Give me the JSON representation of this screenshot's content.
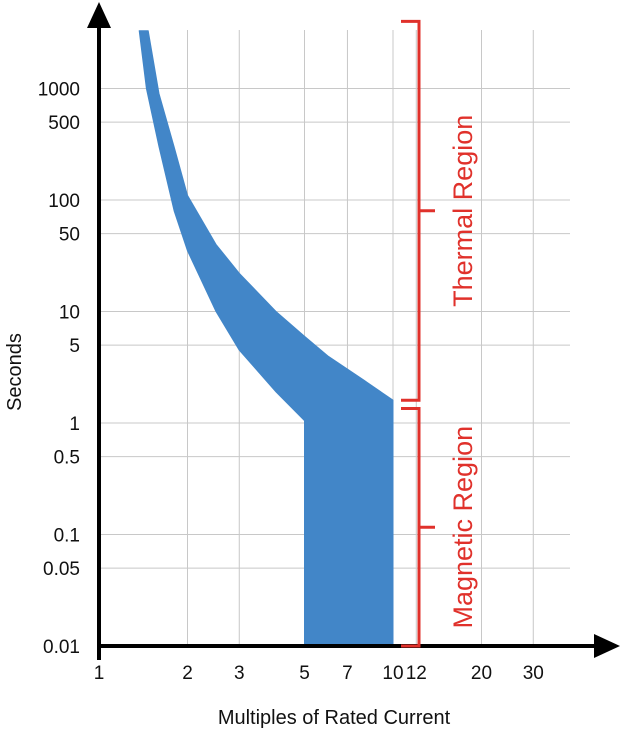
{
  "chart_data": {
    "type": "area",
    "title": "",
    "xlabel": "Multiples of Rated Current",
    "ylabel": "Seconds",
    "x_scale": "log",
    "y_scale": "log",
    "xlim": [
      1,
      45
    ],
    "ylim": [
      0.01,
      4000
    ],
    "grid": true,
    "x_ticks": [
      {
        "value": 1,
        "label": "1"
      },
      {
        "value": 2,
        "label": "2"
      },
      {
        "value": 3,
        "label": "3"
      },
      {
        "value": 5,
        "label": "5"
      },
      {
        "value": 7,
        "label": "7"
      },
      {
        "value": 10,
        "label": "10"
      },
      {
        "value": 12,
        "label": "12"
      },
      {
        "value": 20,
        "label": "20"
      },
      {
        "value": 30,
        "label": "30"
      }
    ],
    "y_ticks": [
      {
        "value": 1000,
        "label": "1000"
      },
      {
        "value": 500,
        "label": "500"
      },
      {
        "value": 100,
        "label": "100"
      },
      {
        "value": 50,
        "label": "50"
      },
      {
        "value": 10,
        "label": "10"
      },
      {
        "value": 5,
        "label": "5"
      },
      {
        "value": 1,
        "label": "1"
      },
      {
        "value": 0.5,
        "label": "0.5"
      },
      {
        "value": 0.1,
        "label": "0.1"
      },
      {
        "value": 0.05,
        "label": "0.05"
      },
      {
        "value": 0.01,
        "label": "0.01"
      }
    ],
    "band": {
      "color": "#4286c8",
      "upper": [
        {
          "x": 1.47,
          "y": 3300
        },
        {
          "x": 1.6,
          "y": 900
        },
        {
          "x": 1.8,
          "y": 300
        },
        {
          "x": 2.0,
          "y": 110
        },
        {
          "x": 2.5,
          "y": 40
        },
        {
          "x": 3.0,
          "y": 22
        },
        {
          "x": 4.0,
          "y": 10
        },
        {
          "x": 5.0,
          "y": 6
        },
        {
          "x": 6.0,
          "y": 4
        },
        {
          "x": 8.0,
          "y": 2.4
        },
        {
          "x": 10.0,
          "y": 1.6
        }
      ],
      "lower": [
        {
          "x": 1.37,
          "y": 3300
        },
        {
          "x": 1.45,
          "y": 1000
        },
        {
          "x": 1.6,
          "y": 300
        },
        {
          "x": 1.8,
          "y": 80
        },
        {
          "x": 2.0,
          "y": 35
        },
        {
          "x": 2.5,
          "y": 10
        },
        {
          "x": 3.0,
          "y": 4.5
        },
        {
          "x": 4.0,
          "y": 1.9
        },
        {
          "x": 5.0,
          "y": 1.05
        },
        {
          "x": 5.0,
          "y": 0.01
        },
        {
          "x": 10.0,
          "y": 0.01
        }
      ]
    },
    "regions": [
      {
        "label": "Thermal Region",
        "y_from": 1.6,
        "y_to": 4000,
        "color": "#e0312b"
      },
      {
        "label": "Magnetic Region",
        "y_from": 0.01,
        "y_to": 1.35,
        "color": "#e0312b"
      }
    ]
  }
}
